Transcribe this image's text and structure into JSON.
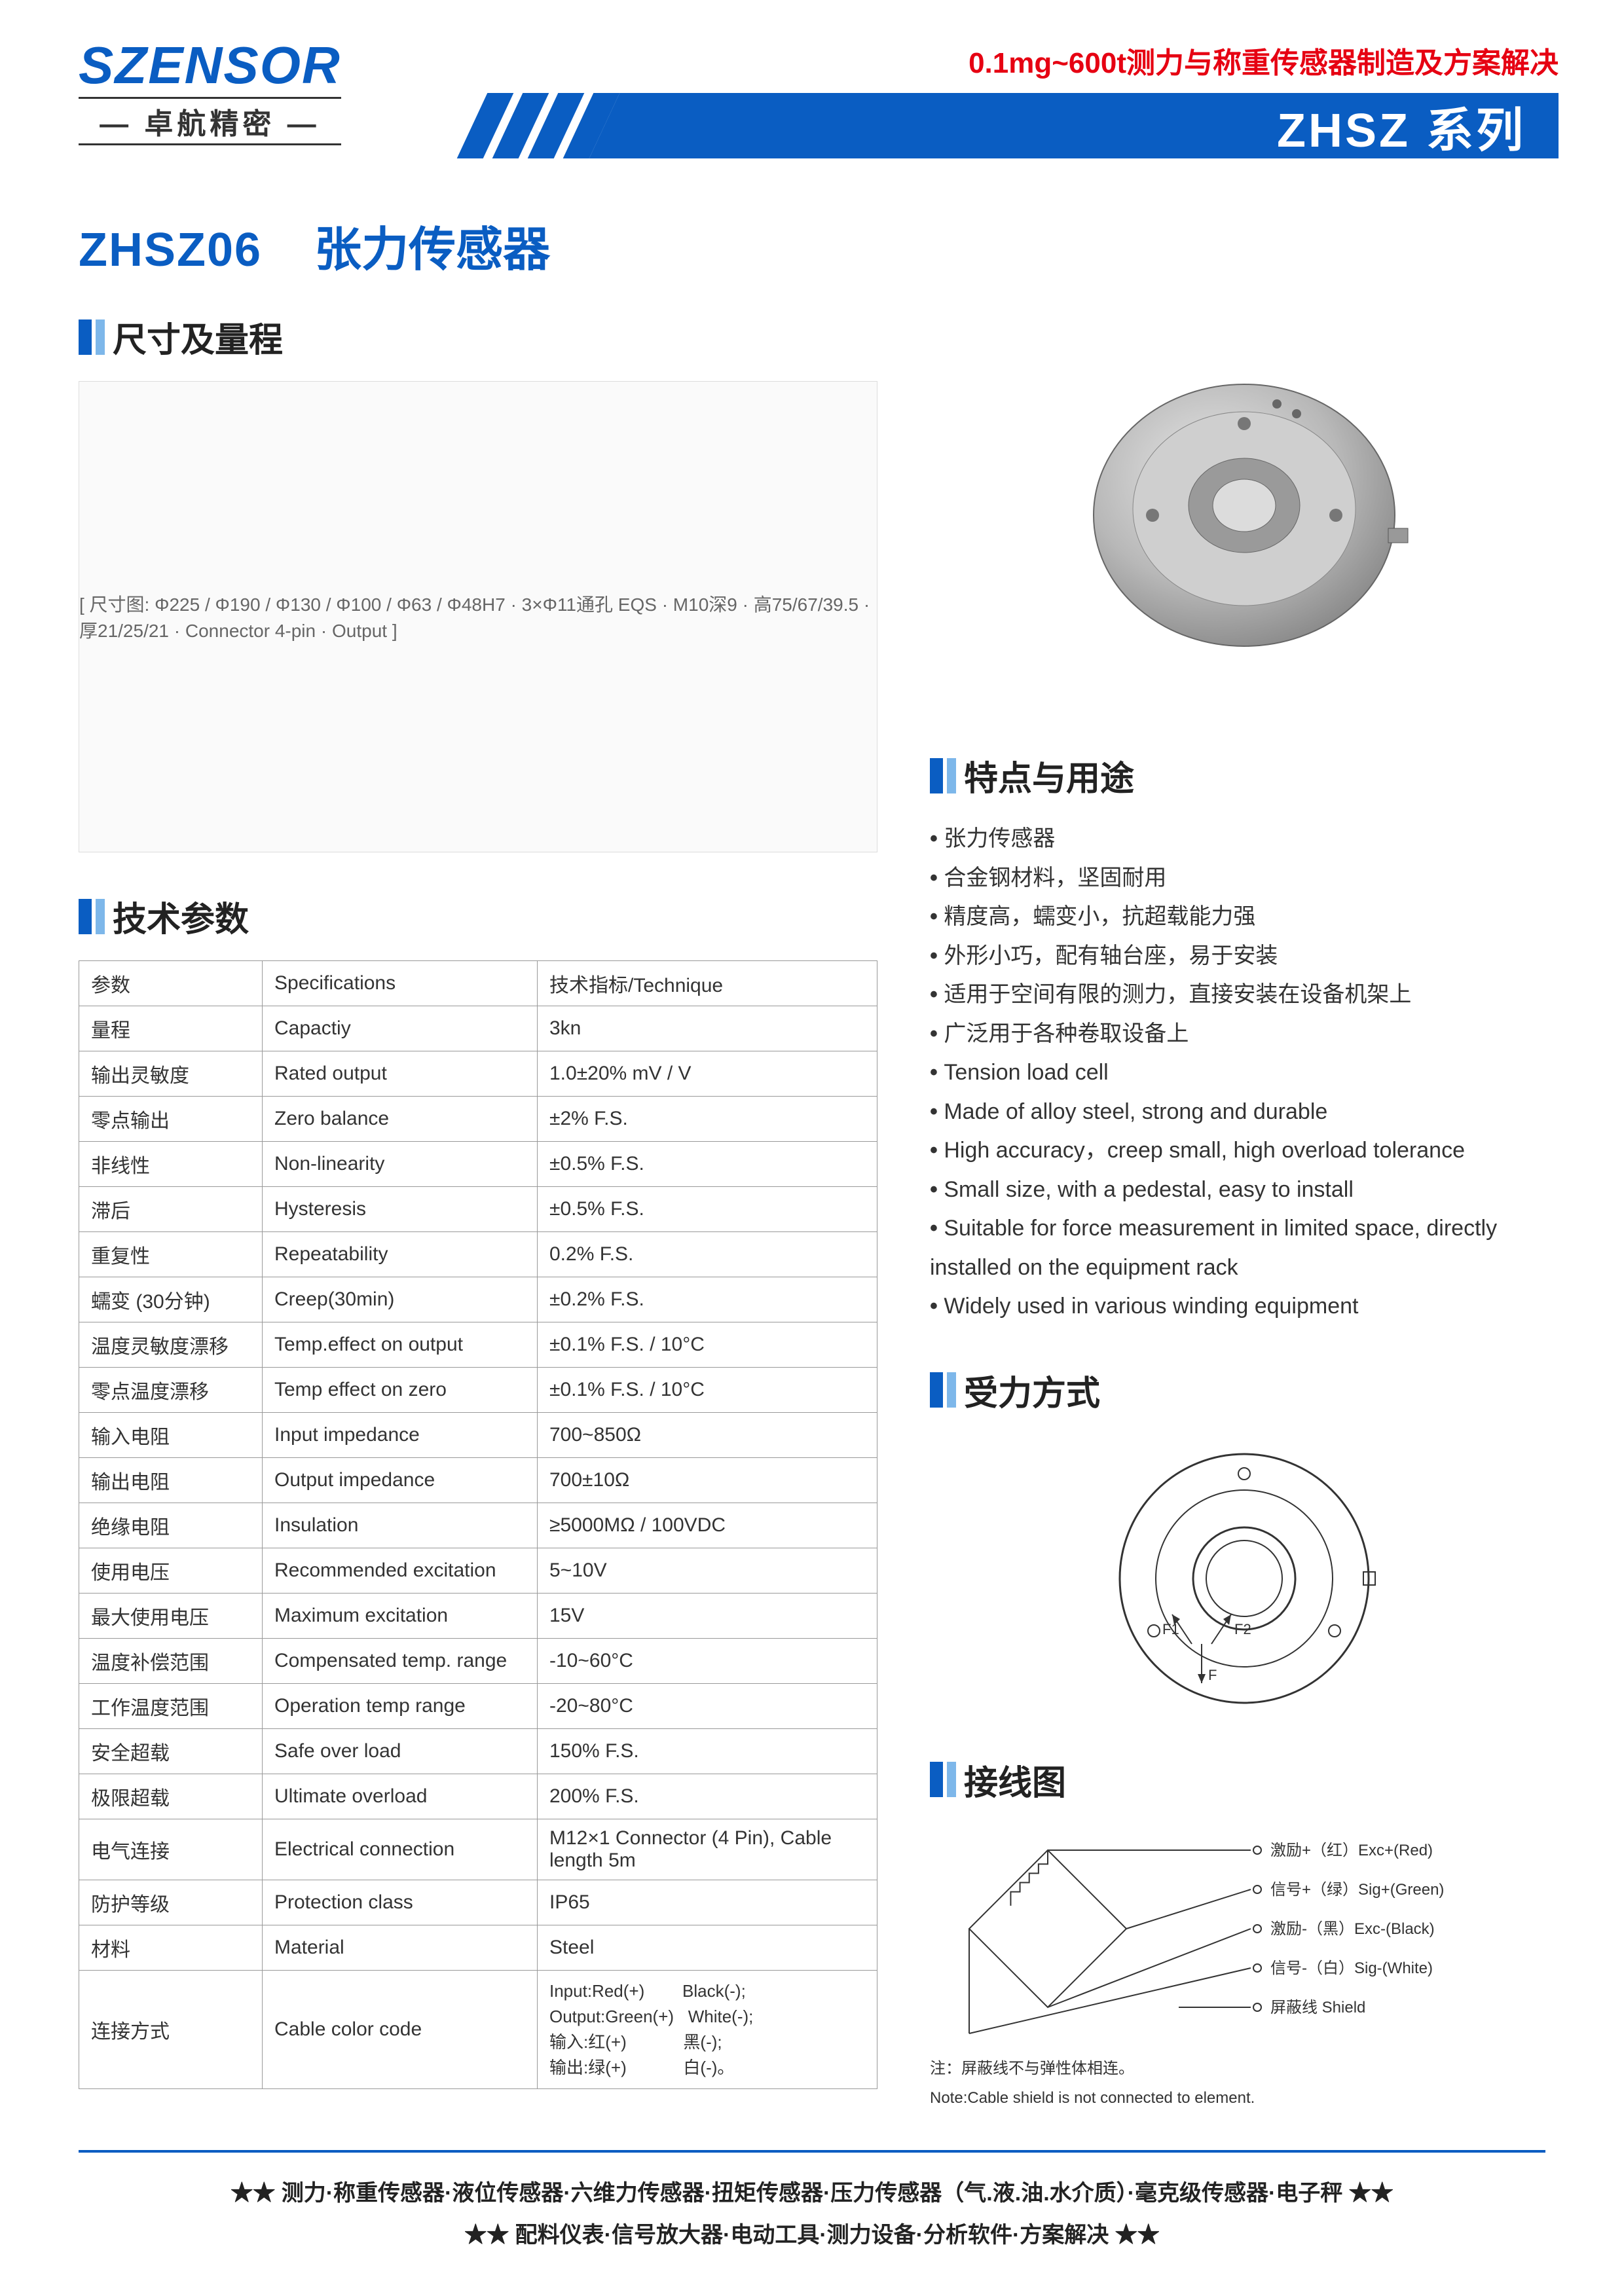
{
  "header": {
    "logo_sub": "卓航精密",
    "tagline": "0.1mg~600t测力与称重传感器制造及方案解决",
    "series": "ZHSZ 系列"
  },
  "title": {
    "model": "ZHSZ06",
    "name": "张力传感器"
  },
  "sections": {
    "dims": "尺寸及量程",
    "specs": "技术参数",
    "features": "特点与用途",
    "force": "受力方式",
    "wiring": "接线图"
  },
  "diagram_label": "[ 尺寸图: Φ225 / Φ190 / Φ130 / Φ100 / Φ63 / Φ48H7 · 3×Φ11通孔 EQS · M10深9 · 高75/67/39.5 · 厚21/25/21 · Connector 4-pin · Output ]",
  "spec_header": [
    "参数",
    "Specifications",
    "技术指标/Technique"
  ],
  "specs": [
    {
      "cn": "量程",
      "en": "Capactiy",
      "val": "3kn"
    },
    {
      "cn": "输出灵敏度",
      "en": "Rated output",
      "val": "1.0±20%  mV / V"
    },
    {
      "cn": "零点输出",
      "en": "Zero balance",
      "val": "±2% F.S."
    },
    {
      "cn": "非线性",
      "en": "Non-linearity",
      "val": "±0.5% F.S."
    },
    {
      "cn": "滞后",
      "en": "Hysteresis",
      "val": "±0.5% F.S."
    },
    {
      "cn": "重复性",
      "en": "Repeatability",
      "val": "0.2% F.S."
    },
    {
      "cn": "蠕变 (30分钟)",
      "en": "Creep(30min)",
      "val": "±0.2% F.S."
    },
    {
      "cn": "温度灵敏度漂移",
      "en": "Temp.effect on output",
      "val": "±0.1% F.S. / 10°C"
    },
    {
      "cn": "零点温度漂移",
      "en": "Temp effect on zero",
      "val": "±0.1% F.S. / 10°C"
    },
    {
      "cn": "输入电阻",
      "en": "Input impedance",
      "val": "700~850Ω"
    },
    {
      "cn": "输出电阻",
      "en": "Output impedance",
      "val": "700±10Ω"
    },
    {
      "cn": "绝缘电阻",
      "en": "Insulation",
      "val": "≥5000MΩ / 100VDC"
    },
    {
      "cn": "使用电压",
      "en": "Recommended excitation",
      "val": "5~10V"
    },
    {
      "cn": "最大使用电压",
      "en": "Maximum excitation",
      "val": "15V"
    },
    {
      "cn": "温度补偿范围",
      "en": "Compensated temp. range",
      "val": "-10~60°C"
    },
    {
      "cn": "工作温度范围",
      "en": "Operation temp range",
      "val": "-20~80°C"
    },
    {
      "cn": "安全超载",
      "en": "Safe over load",
      "val": "150% F.S."
    },
    {
      "cn": "极限超载",
      "en": "Ultimate overload",
      "val": "200% F.S."
    },
    {
      "cn": "电气连接",
      "en": "Electrical connection",
      "val": "M12×1 Connector (4 Pin), Cable length 5m"
    },
    {
      "cn": "防护等级",
      "en": "Protection class",
      "val": "IP65"
    },
    {
      "cn": "材料",
      "en": "Material",
      "val": "Steel"
    }
  ],
  "cable_row": {
    "cn": "连接方式",
    "en": "Cable color code",
    "lines": [
      "Input:Red(+)        Black(-);",
      "Output:Green(+)   White(-);",
      "输入:红(+)            黑(-);",
      "输出:绿(+)            白(-)。"
    ]
  },
  "features": [
    "张力传感器",
    "合金钢材料，坚固耐用",
    "精度高，蠕变小，抗超载能力强",
    "外形小巧，配有轴台座，易于安装",
    "适用于空间有限的测力，直接安装在设备机架上",
    "广泛用于各种卷取设备上",
    "Tension load cell",
    "Made of alloy steel, strong and durable",
    "High accuracy，creep small, high overload tolerance",
    "Small size, with a pedestal, easy to install",
    "Suitable for force measurement in limited space, directly installed on the equipment rack",
    "Widely used in various winding equipment"
  ],
  "wiring_labels": {
    "exc_p": "激励+（红）Exc+(Red)",
    "sig_p": "信号+（绿）Sig+(Green)",
    "exc_n": "激励-（黑）Exc-(Black)",
    "sig_n": "信号-（白）Sig-(White)",
    "shield": "屏蔽线 Shield",
    "note_cn": "注：屏蔽线不与弹性体相连。",
    "note_en": "Note:Cable shield is not connected to element."
  },
  "footer": {
    "line1": "★★ 测力·称重传感器·液位传感器·六维力传感器·扭矩传感器·压力传感器（气.液.油.水介质）·毫克级传感器·电子秤 ★★",
    "line2": "★★ 配料仪表·信号放大器·电动工具·测力设备·分析软件·方案解决 ★★"
  }
}
